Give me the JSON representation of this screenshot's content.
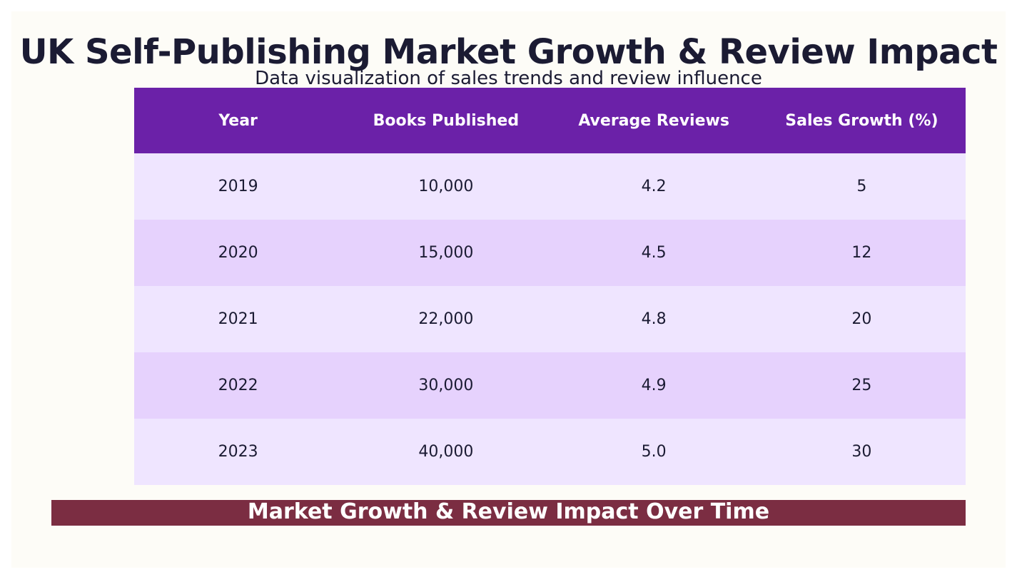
{
  "header": {
    "title": "UK Self-Publishing Market Growth & Review Impact",
    "subtitle": "Data visualization of sales trends and review influence"
  },
  "footer": {
    "label": "Market Growth & Review Impact Over Time"
  },
  "colors": {
    "header_bg": "#6b21a8",
    "row_light": "#efe5ff",
    "row_dark": "#e6d2fd",
    "footer_bg": "#7b2d42",
    "background": "#fdfcf7"
  },
  "chart_data": {
    "type": "table",
    "title": "UK Self-Publishing Market Growth & Review Impact",
    "subtitle": "Data visualization of sales trends and review influence",
    "columns": [
      "Year",
      "Books Published",
      "Average Reviews",
      "Sales Growth (%)"
    ],
    "rows": [
      [
        "2019",
        "10,000",
        "4.2",
        "5"
      ],
      [
        "2020",
        "15,000",
        "4.5",
        "12"
      ],
      [
        "2021",
        "22,000",
        "4.8",
        "20"
      ],
      [
        "2022",
        "30,000",
        "4.9",
        "25"
      ],
      [
        "2023",
        "40,000",
        "5.0",
        "30"
      ]
    ]
  }
}
